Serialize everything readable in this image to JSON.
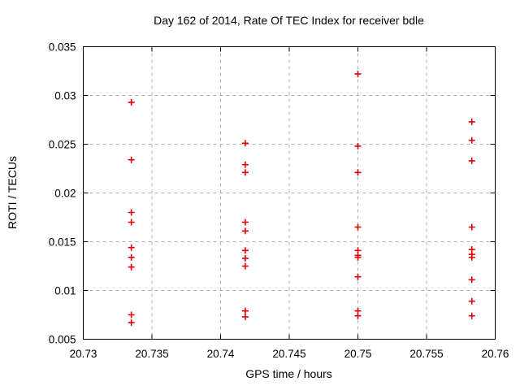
{
  "chart_data": {
    "type": "scatter",
    "title": "Day 162 of 2014, Rate Of TEC Index for receiver bdle",
    "xlabel": "GPS time / hours",
    "ylabel": "ROTI / TECUs",
    "xlim": [
      20.73,
      20.76
    ],
    "ylim": [
      0.005,
      0.035
    ],
    "xticks": {
      "values": [
        20.73,
        20.735,
        20.74,
        20.745,
        20.75,
        20.755,
        20.76
      ],
      "labels": [
        "20.73",
        "20.735",
        "20.74",
        "20.745",
        "20.75",
        "20.755",
        "20.76"
      ]
    },
    "yticks": {
      "values": [
        0.005,
        0.01,
        0.015,
        0.02,
        0.025,
        0.03,
        0.035
      ],
      "labels": [
        "0.005",
        "0.01",
        "0.015",
        "0.02",
        "0.025",
        "0.03",
        "0.035"
      ]
    },
    "grid": true,
    "legend_position": "none",
    "marker": {
      "shape": "plus",
      "color": "#e00000"
    },
    "series": [
      {
        "name": "ROTI",
        "points": [
          [
            20.7335,
            0.0293
          ],
          [
            20.7335,
            0.0234
          ],
          [
            20.7335,
            0.018
          ],
          [
            20.7335,
            0.017
          ],
          [
            20.7335,
            0.0144
          ],
          [
            20.7335,
            0.0134
          ],
          [
            20.7335,
            0.0124
          ],
          [
            20.7335,
            0.0075
          ],
          [
            20.7335,
            0.0067
          ],
          [
            20.7418,
            0.0251
          ],
          [
            20.7418,
            0.0229
          ],
          [
            20.7418,
            0.0221
          ],
          [
            20.7418,
            0.017
          ],
          [
            20.7418,
            0.0161
          ],
          [
            20.7418,
            0.0141
          ],
          [
            20.7418,
            0.0133
          ],
          [
            20.7418,
            0.0125
          ],
          [
            20.7418,
            0.0079
          ],
          [
            20.7418,
            0.0073
          ],
          [
            20.75,
            0.0322
          ],
          [
            20.75,
            0.0248
          ],
          [
            20.75,
            0.0221
          ],
          [
            20.75,
            0.0165
          ],
          [
            20.75,
            0.0141
          ],
          [
            20.75,
            0.0136
          ],
          [
            20.75,
            0.0134
          ],
          [
            20.75,
            0.0114
          ],
          [
            20.75,
            0.0079
          ],
          [
            20.75,
            0.0074
          ],
          [
            20.7583,
            0.0273
          ],
          [
            20.7583,
            0.0254
          ],
          [
            20.7583,
            0.0233
          ],
          [
            20.7583,
            0.0165
          ],
          [
            20.7583,
            0.0142
          ],
          [
            20.7583,
            0.0137
          ],
          [
            20.7583,
            0.0134
          ],
          [
            20.7583,
            0.0111
          ],
          [
            20.7583,
            0.0089
          ],
          [
            20.7583,
            0.0074
          ]
        ]
      }
    ]
  }
}
